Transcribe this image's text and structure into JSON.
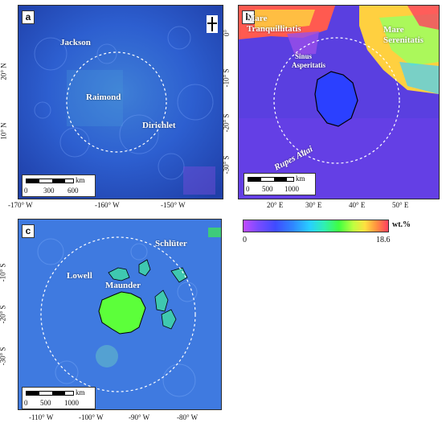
{
  "panels": {
    "a": {
      "letter": "a",
      "features": {
        "jackson": "Jackson",
        "raimond": "Raimond",
        "dirichlet": "Dirichlet"
      },
      "yticks": [
        "20° N",
        "10° N"
      ],
      "xticks": [
        "-170° W",
        "-160° W",
        "-150° W"
      ],
      "scale": {
        "unit": "km",
        "labels": [
          "0",
          "300",
          "600"
        ]
      }
    },
    "b": {
      "letter": "b",
      "features": {
        "tranquillitatis_1": "Mare",
        "tranquillitatis_2": "Tranquillitatis",
        "serenitatis_1": "Mare",
        "serenitatis_2": "Serenitatis",
        "apenninus_1": "Sinus",
        "apenninus_2": "Asperitatis",
        "altai": "Rupes Altai"
      },
      "yticks": [
        "0°",
        "-10° S",
        "-20° S",
        "-30° S"
      ],
      "xticks": [
        "20° E",
        "30° E",
        "40° E",
        "50° E"
      ],
      "scale": {
        "unit": "km",
        "labels": [
          "0",
          "500",
          "1000"
        ]
      }
    },
    "c": {
      "letter": "c",
      "features": {
        "lowell": "Lowell",
        "maunder": "Maunder",
        "schluter": "Schlüter"
      },
      "yticks": [
        "-10° S",
        "-20° S",
        "-30° S"
      ],
      "xticks": [
        "-110° W",
        "-100° W",
        "-90° W",
        "-80° W"
      ],
      "scale": {
        "unit": "km",
        "labels": [
          "0",
          "500",
          "1000"
        ]
      }
    }
  },
  "colorbar": {
    "min": "0",
    "max": "18.6",
    "unit": "wt.%"
  },
  "colors": {
    "deep_purple": "#5a2bd6",
    "blue": "#2f64ff",
    "green": "#39ff2f",
    "red": "#ff4060"
  }
}
